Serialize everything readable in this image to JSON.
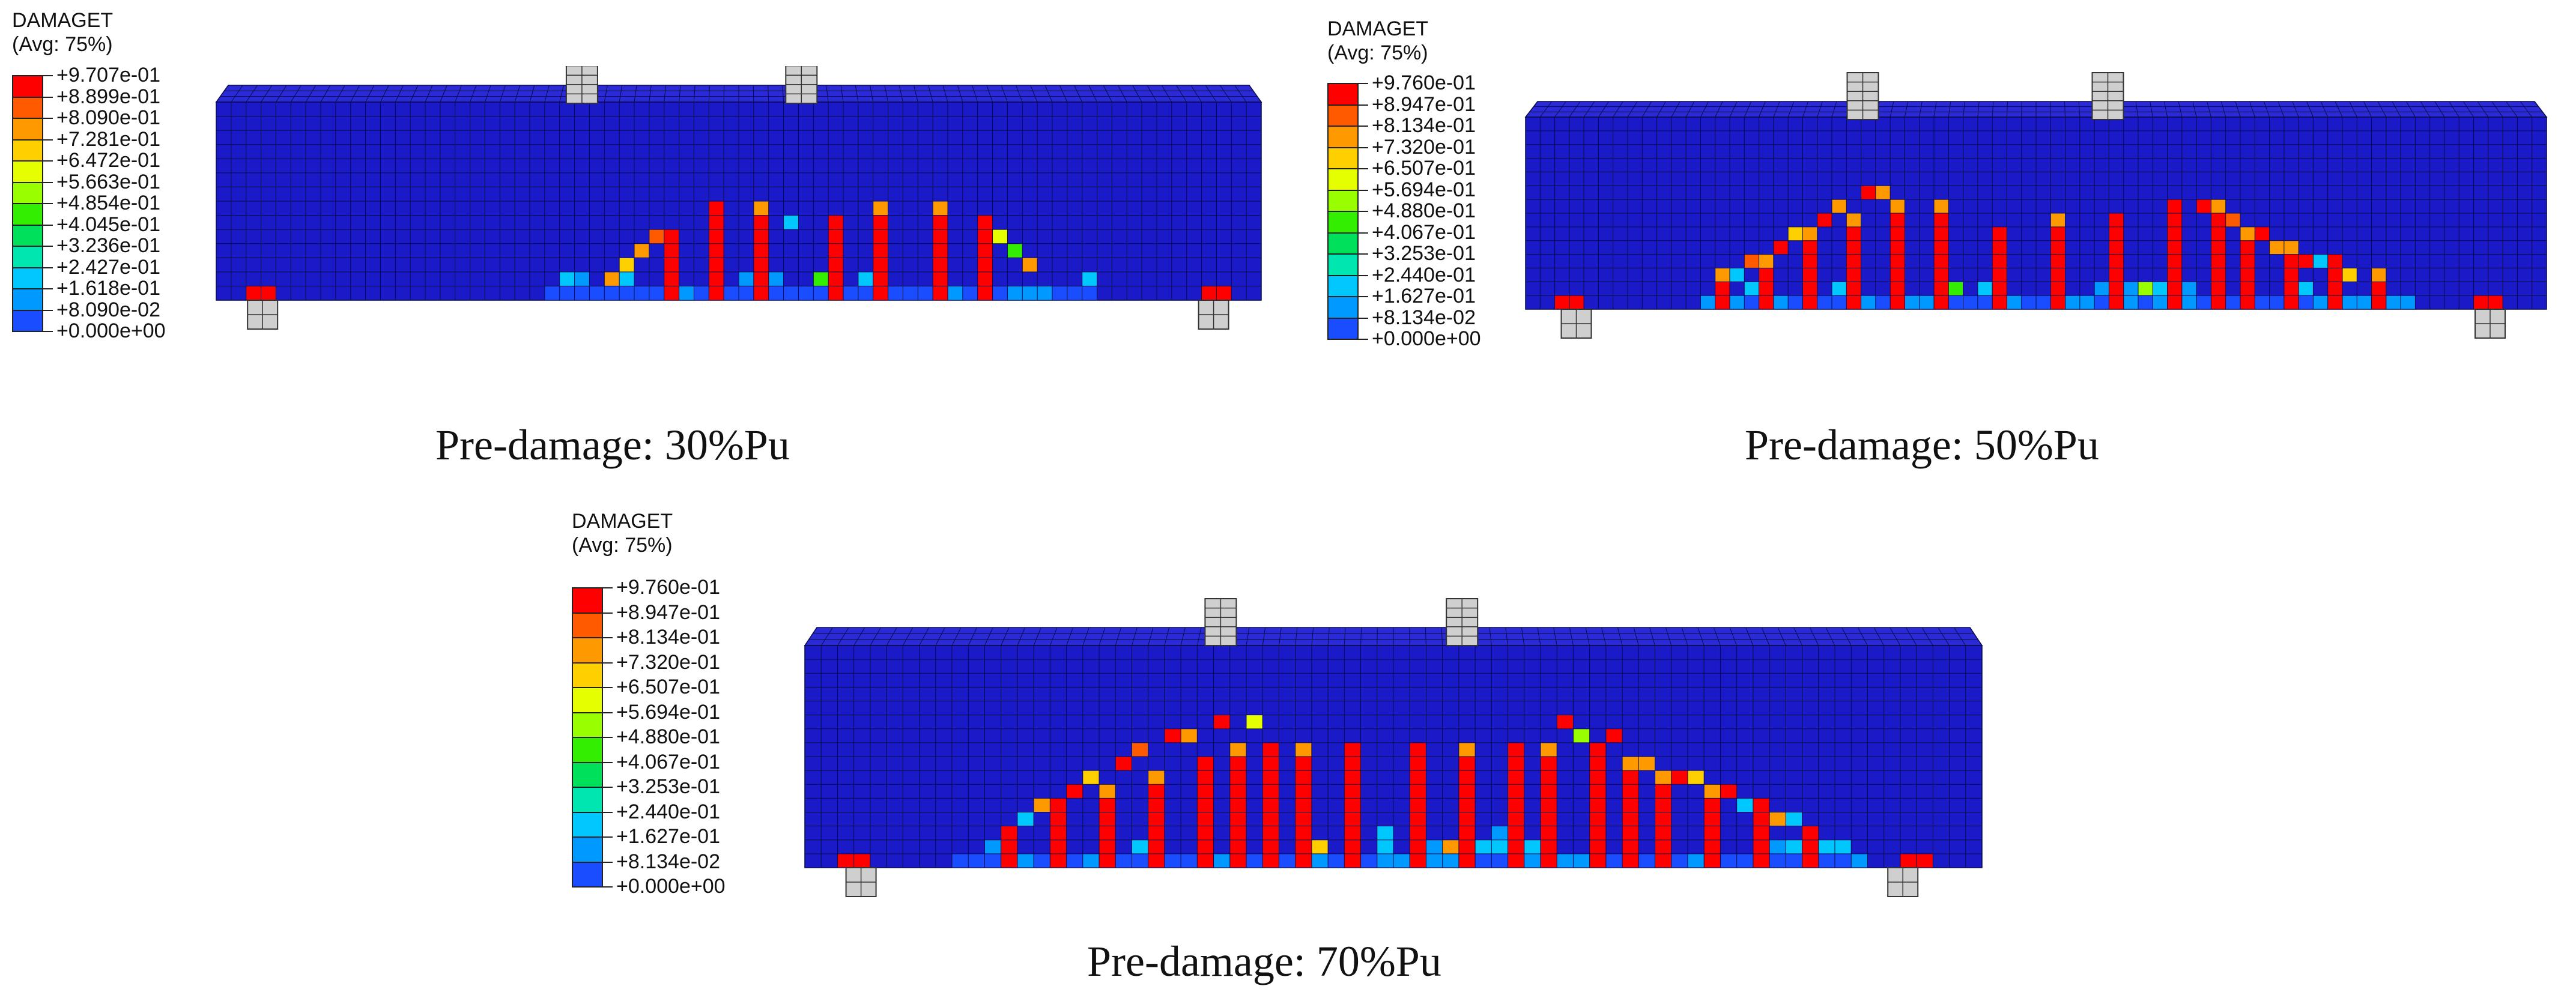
{
  "panels": [
    {
      "caption": "Pre-damage: 30%Pu",
      "legend_var": "DAMAGET",
      "legend_avg": "(Avg: 75%)",
      "levels": [
        "+9.707e-01",
        "+8.899e-01",
        "+8.090e-01",
        "+7.281e-01",
        "+6.472e-01",
        "+5.663e-01",
        "+4.854e-01",
        "+4.045e-01",
        "+3.236e-01",
        "+2.427e-01",
        "+1.618e-01",
        "+8.090e-02",
        "+0.000e+00"
      ]
    },
    {
      "caption": "Pre-damage: 50%Pu",
      "legend_var": "DAMAGET",
      "legend_avg": "(Avg: 75%)",
      "levels": [
        "+9.760e-01",
        "+8.947e-01",
        "+8.134e-01",
        "+7.320e-01",
        "+6.507e-01",
        "+5.694e-01",
        "+4.880e-01",
        "+4.067e-01",
        "+3.253e-01",
        "+2.440e-01",
        "+1.627e-01",
        "+8.134e-02",
        "+0.000e+00"
      ]
    },
    {
      "caption": "Pre-damage: 70%Pu",
      "legend_var": "DAMAGET",
      "legend_avg": "(Avg: 75%)",
      "levels": [
        "+9.760e-01",
        "+8.947e-01",
        "+8.134e-01",
        "+7.320e-01",
        "+6.507e-01",
        "+5.694e-01",
        "+4.880e-01",
        "+4.067e-01",
        "+3.253e-01",
        "+2.440e-01",
        "+1.627e-01",
        "+8.134e-02",
        "+0.000e+00"
      ]
    }
  ],
  "colors": {
    "contour": [
      "#ff0000",
      "#ff5a00",
      "#ff9900",
      "#ffd000",
      "#e6ff00",
      "#99ff00",
      "#33ee00",
      "#00e05a",
      "#00e6b0",
      "#00c8ff",
      "#0099ff",
      "#1a4dff",
      "#0000ee"
    ],
    "beam_body": "#1a1ac9",
    "beam_top": "#2a2ad6",
    "mesh": "#0a0a4a",
    "support": "#cfcfcf"
  }
}
